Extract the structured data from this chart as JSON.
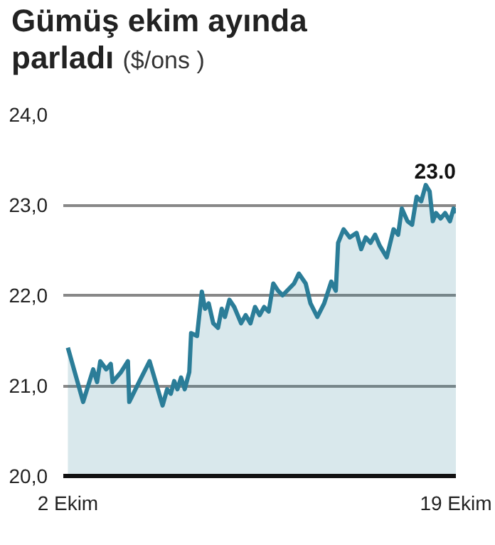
{
  "chart_data": {
    "type": "area",
    "title": "Gümüş ekim ayında parladı",
    "subtitle": "($/ons )",
    "x": [
      2.0,
      2.67,
      3.11,
      3.28,
      3.42,
      3.68,
      3.88,
      3.96,
      4.33,
      4.63,
      4.69,
      5.14,
      5.58,
      6.15,
      6.35,
      6.51,
      6.66,
      6.8,
      6.96,
      7.12,
      7.32,
      7.4,
      7.66,
      7.87,
      8.01,
      8.17,
      8.37,
      8.58,
      8.74,
      8.88,
      9.08,
      9.29,
      9.59,
      9.79,
      10.0,
      10.2,
      10.4,
      10.6,
      10.8,
      11.0,
      11.21,
      11.41,
      11.91,
      12.12,
      12.42,
      12.63,
      12.93,
      13.23,
      13.54,
      13.74,
      13.84,
      14.08,
      14.35,
      14.65,
      14.85,
      15.05,
      15.26,
      15.46,
      15.66,
      15.97,
      16.27,
      16.47,
      16.63,
      16.88,
      17.08,
      17.28,
      17.48,
      17.68,
      17.85,
      17.99,
      18.13,
      18.33,
      18.53,
      18.74,
      18.9,
      19.0
    ],
    "series": [
      {
        "color": "#2b7d98",
        "values": [
          21.42,
          20.82,
          21.18,
          21.04,
          21.27,
          21.18,
          21.24,
          21.04,
          21.15,
          21.27,
          20.82,
          21.05,
          21.27,
          20.78,
          20.96,
          20.91,
          21.05,
          20.96,
          21.09,
          20.96,
          21.15,
          21.58,
          21.55,
          22.04,
          21.85,
          21.91,
          21.69,
          21.64,
          21.85,
          21.76,
          21.95,
          21.87,
          21.69,
          21.78,
          21.69,
          21.87,
          21.78,
          21.87,
          21.82,
          22.13,
          22.05,
          22.0,
          22.13,
          22.24,
          22.13,
          21.91,
          21.76,
          21.91,
          22.15,
          22.05,
          22.58,
          22.73,
          22.64,
          22.69,
          22.51,
          22.64,
          22.58,
          22.67,
          22.55,
          22.42,
          22.73,
          22.67,
          22.96,
          22.82,
          22.78,
          23.09,
          23.04,
          23.22,
          23.15,
          22.82,
          22.91,
          22.85,
          22.91,
          22.82,
          22.96,
          22.91
        ]
      }
    ],
    "xlim": [
      1.8,
      19.0
    ],
    "xticks": [
      {
        "value": 2,
        "label": "2 Ekim"
      },
      {
        "value": 19,
        "label": "19 Ekim"
      }
    ],
    "ylim": [
      20,
      24
    ],
    "yticks": [
      {
        "value": 20,
        "label": "20,0"
      },
      {
        "value": 21,
        "label": "21,0"
      },
      {
        "value": 22,
        "label": "22,0"
      },
      {
        "value": 23,
        "label": "23,0"
      },
      {
        "value": 24,
        "label": "24,0"
      }
    ],
    "grid": "y",
    "annotations": [
      {
        "text": "23.0",
        "x": 19.0,
        "y": 22.91
      }
    ]
  }
}
